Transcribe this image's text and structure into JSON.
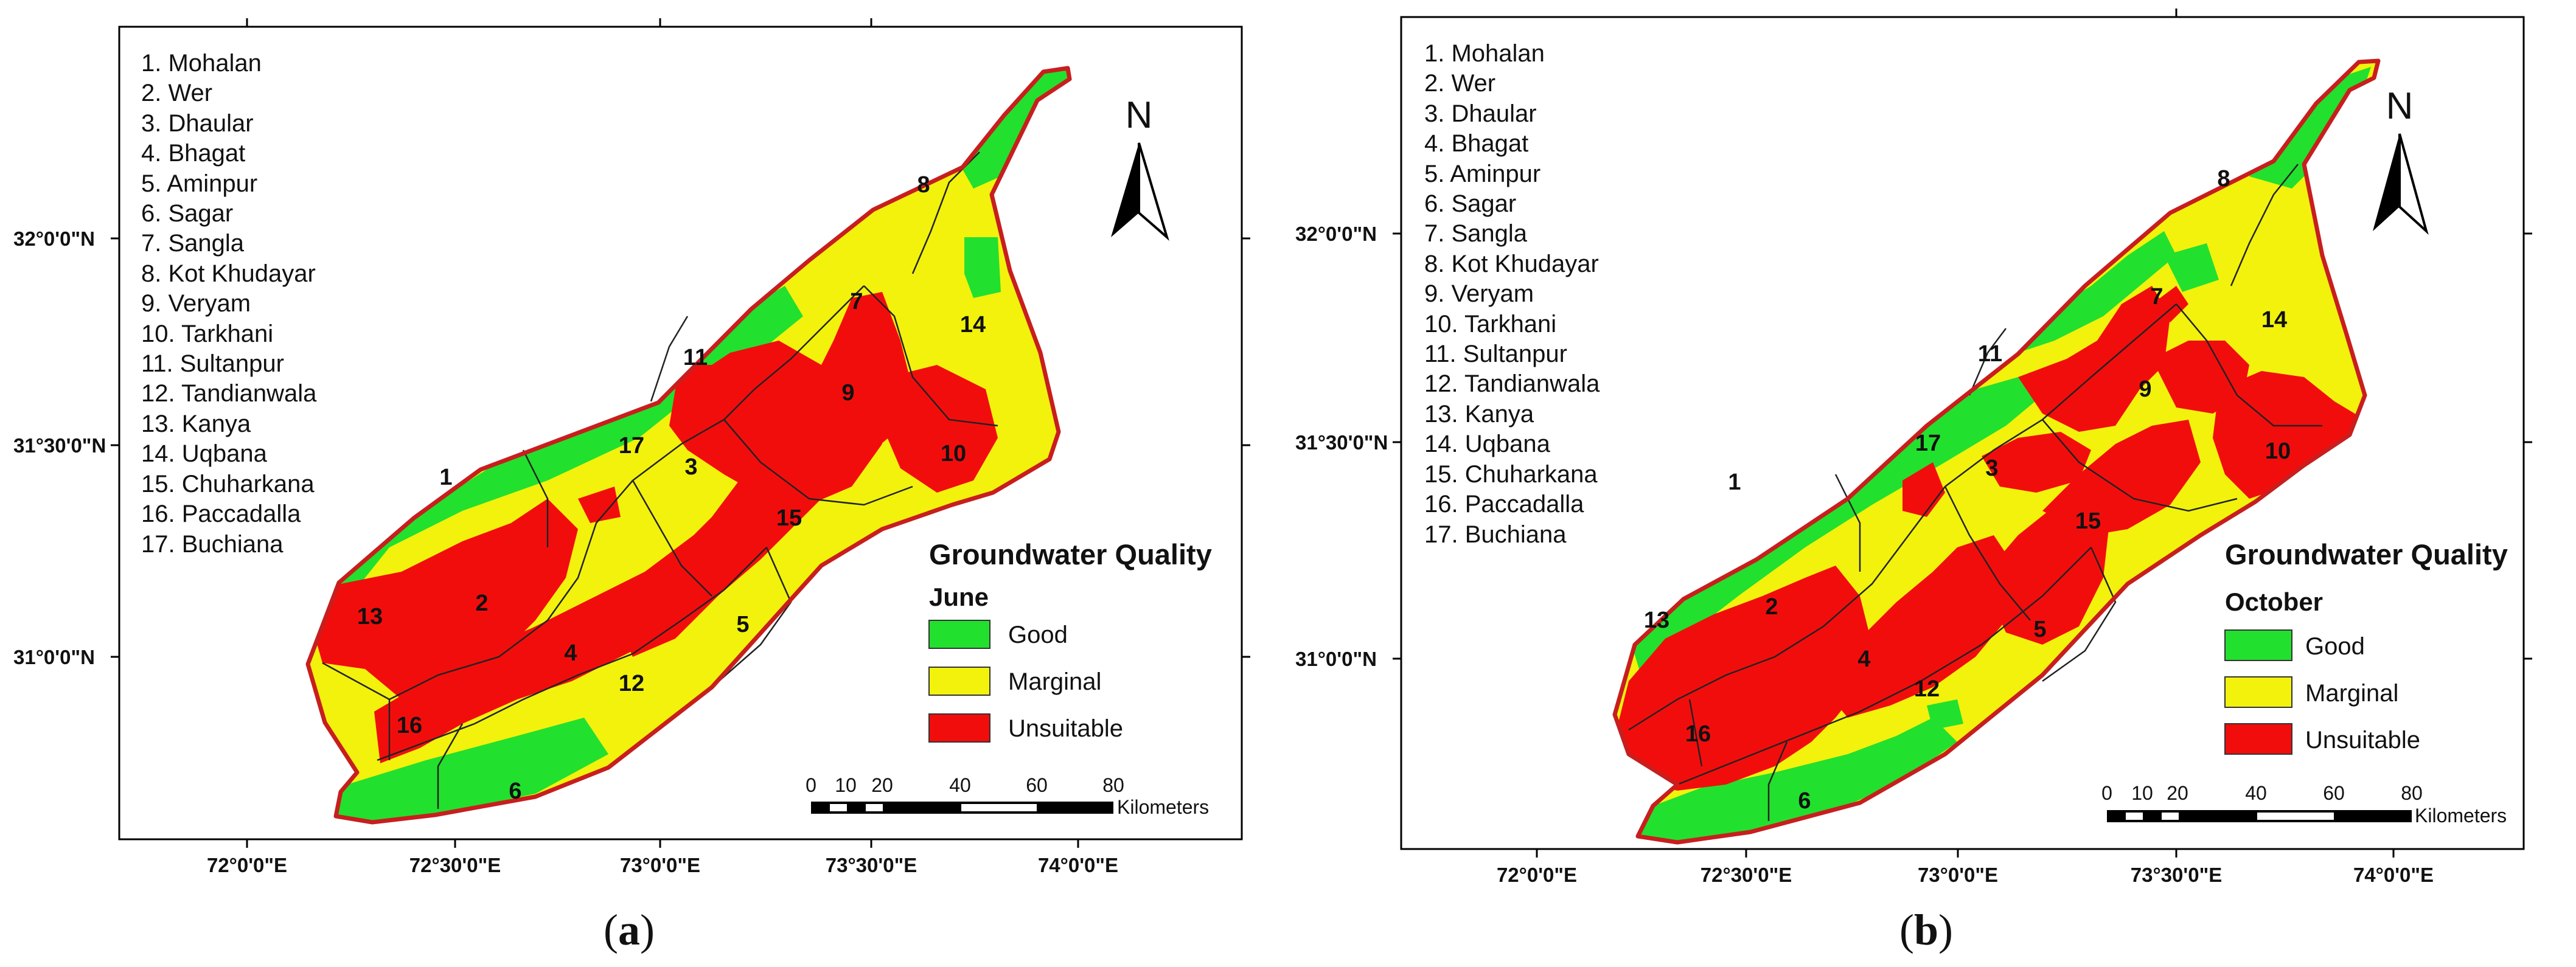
{
  "panels": [
    {
      "caption_letter": "a",
      "legend": {
        "title": "Groundwater Quality",
        "month": "June"
      },
      "districts": [
        "1. Mohalan",
        "2. Wer",
        "3. Dhaular",
        "4. Bhagat",
        "5. Aminpur",
        "6. Sagar",
        "7. Sangla",
        "8. Kot Khudayar",
        "9. Veryam",
        "10. Tarkhani",
        "11. Sultanpur",
        "12. Tandianwala",
        "13. Kanya",
        "14. Uqbana",
        "15. Chuharkana",
        "16. Paccadalla",
        "17. Buchiana"
      ]
    },
    {
      "caption_letter": "b",
      "legend": {
        "title": "Groundwater Quality",
        "month": "October"
      },
      "districts": [
        "1. Mohalan",
        "2. Wer",
        "3. Dhaular",
        "4. Bhagat",
        "5. Aminpur",
        "6. Sagar",
        "7. Sangla",
        "8. Kot Khudayar",
        "9. Veryam",
        "10. Tarkhani",
        "11. Sultanpur",
        "12. Tandianwala",
        "13. Kanya",
        "14. Uqbana",
        "15. Chuharkana",
        "16. Paccadalla",
        "17. Buchiana"
      ]
    }
  ],
  "legend_classes": [
    {
      "label": "Good",
      "color": "#22e02e"
    },
    {
      "label": "Marginal",
      "color": "#f2f20d"
    },
    {
      "label": "Unsuitable",
      "color": "#f20d0d"
    }
  ],
  "lat_labels": [
    "32°0'0\"N",
    "31°30'0\"N",
    "31°0'0\"N"
  ],
  "lon_labels": [
    "72°0'0\"E",
    "72°30'0\"E",
    "73°0'0\"E",
    "73°30'0\"E",
    "74°0'0\"E"
  ],
  "scale_bar": {
    "ticks": [
      "0",
      "10",
      "20",
      "40",
      "60",
      "80"
    ],
    "unit": "Kilometers"
  },
  "north_label": "N",
  "district_numbers": [
    "1",
    "2",
    "3",
    "4",
    "5",
    "6",
    "7",
    "8",
    "9",
    "10",
    "11",
    "12",
    "13",
    "14",
    "15",
    "16",
    "17"
  ]
}
